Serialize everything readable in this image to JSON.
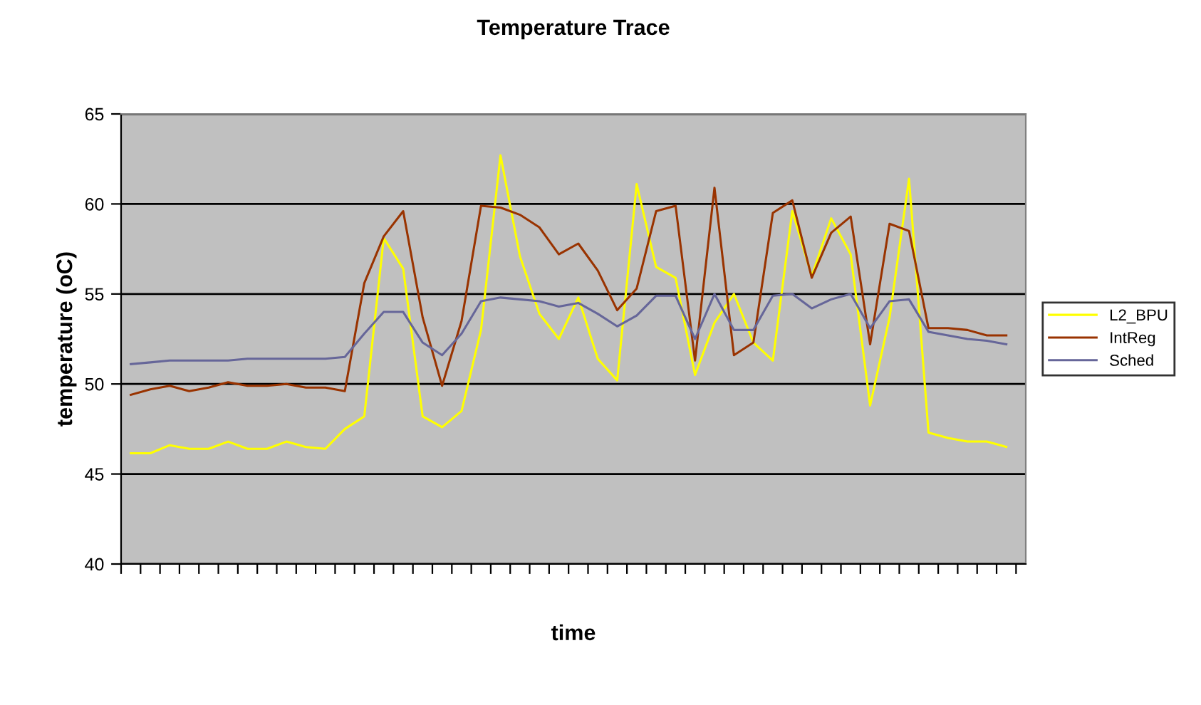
{
  "chart_data": {
    "type": "line",
    "title": "Temperature Trace",
    "xlabel": "time",
    "ylabel": "temperature (oC)",
    "categories": [
      null,
      null,
      null,
      null,
      null,
      null,
      null,
      null,
      null,
      null,
      null,
      null,
      null,
      null,
      null,
      null,
      null,
      null,
      null,
      null,
      null,
      null,
      null,
      null,
      null,
      null,
      null,
      null,
      null,
      null,
      null,
      null,
      null,
      null,
      null,
      null,
      null,
      null,
      null,
      null,
      null,
      null,
      null,
      null,
      null,
      null
    ],
    "series": [
      {
        "name": "L2_BPU",
        "color": "#ffff00",
        "values": [
          46.15,
          46.15,
          46.6,
          46.4,
          46.4,
          46.8,
          46.4,
          46.4,
          46.8,
          46.5,
          46.4,
          47.5,
          48.2,
          58.1,
          56.4,
          48.2,
          47.6,
          48.5,
          53.0,
          62.7,
          57.1,
          53.9,
          52.5,
          54.8,
          51.4,
          50.2,
          61.1,
          56.5,
          55.9,
          50.5,
          53.4,
          55.0,
          52.3,
          51.3,
          59.6,
          56.0,
          59.2,
          57.2,
          48.8,
          53.7,
          61.4,
          47.3,
          47.0,
          46.8,
          46.8,
          46.5
        ]
      },
      {
        "name": "IntReg",
        "color": "#993300",
        "values": [
          49.4,
          49.7,
          49.9,
          49.6,
          49.8,
          50.1,
          49.9,
          49.9,
          50.0,
          49.8,
          49.8,
          49.6,
          55.6,
          58.2,
          59.6,
          53.7,
          49.9,
          53.5,
          59.9,
          59.8,
          59.4,
          58.7,
          57.2,
          57.8,
          56.3,
          54.1,
          55.3,
          59.6,
          59.9,
          51.3,
          60.9,
          51.6,
          52.3,
          59.5,
          60.2,
          55.9,
          58.4,
          59.3,
          52.2,
          58.9,
          58.5,
          53.1,
          53.1,
          53.0,
          52.7,
          52.7
        ]
      },
      {
        "name": "Sched",
        "color": "#666699",
        "values": [
          51.1,
          51.2,
          51.3,
          51.3,
          51.3,
          51.3,
          51.4,
          51.4,
          51.4,
          51.4,
          51.4,
          51.5,
          52.8,
          54.0,
          54.0,
          52.3,
          51.6,
          52.8,
          54.6,
          54.8,
          54.7,
          54.6,
          54.3,
          54.5,
          53.9,
          53.2,
          53.8,
          54.9,
          54.9,
          52.5,
          55.0,
          53.0,
          53.0,
          54.9,
          55.0,
          54.2,
          54.7,
          55.0,
          53.1,
          54.6,
          54.7,
          52.9,
          52.7,
          52.5,
          52.4,
          52.2
        ]
      }
    ],
    "ylim": [
      40,
      65
    ],
    "yticks": [
      40,
      45,
      50,
      55,
      60,
      65
    ],
    "grid": "y",
    "legend": "right",
    "marker": "none",
    "line_style": "solid"
  }
}
